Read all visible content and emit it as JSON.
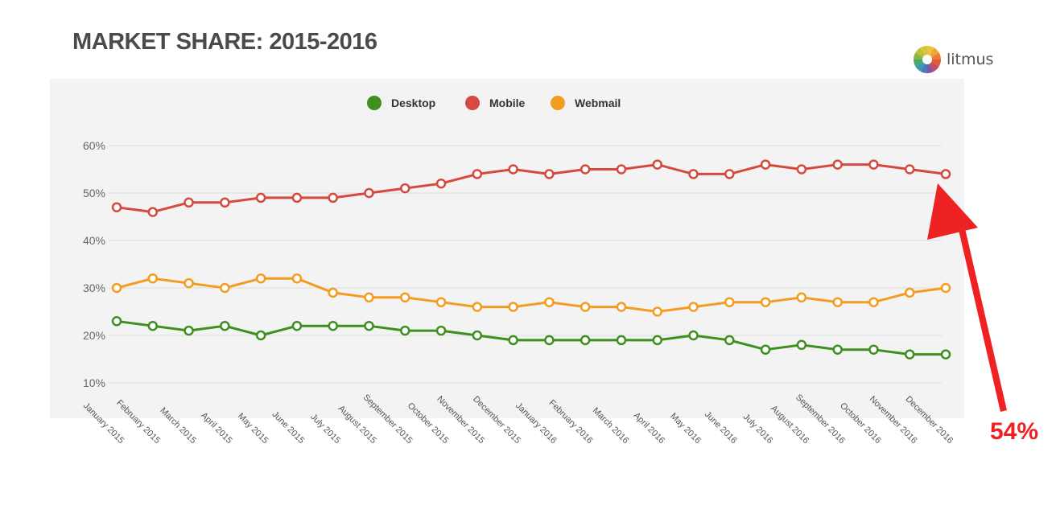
{
  "colors": {
    "desktop": "#3d8f1e",
    "mobile": "#d5493f",
    "webmail": "#f39c1f",
    "plot_bg": "#f3f3f3",
    "arrow": "#ee2222"
  },
  "brand": {
    "name": "litmus",
    "icon": "litmus-color-wheel-icon"
  },
  "annotation": {
    "label": "54%",
    "icon": "red-arrow-icon"
  },
  "chart_data": {
    "type": "line",
    "title": "MARKET SHARE: 2015-2016",
    "legend_position": "top-center",
    "grid": true,
    "ylim": [
      10,
      60
    ],
    "yticks": [
      "60%",
      "50%",
      "40%",
      "30%",
      "20%",
      "10%"
    ],
    "categories": [
      "January 2015",
      "February 2015",
      "March 2015",
      "April 2015",
      "May 2015",
      "June 2015",
      "July 2015",
      "August 2015",
      "September 2015",
      "October 2015",
      "November 2015",
      "December 2015",
      "January 2016",
      "February 2016",
      "March 2016",
      "April 2016",
      "May 2016",
      "June 2016",
      "July 2016",
      "August 2016",
      "September 2016",
      "October 2016",
      "November 2016",
      "December 2016"
    ],
    "series": [
      {
        "name": "Desktop",
        "values": [
          23,
          22,
          21,
          22,
          20,
          22,
          22,
          22,
          21,
          21,
          20,
          19,
          19,
          19,
          19,
          19,
          20,
          19,
          17,
          18,
          17,
          17,
          16,
          16
        ]
      },
      {
        "name": "Mobile",
        "values": [
          47,
          46,
          48,
          48,
          49,
          49,
          49,
          50,
          51,
          52,
          54,
          55,
          54,
          55,
          55,
          56,
          54,
          54,
          56,
          55,
          56,
          56,
          55,
          54
        ]
      },
      {
        "name": "Webmail",
        "values": [
          30,
          32,
          31,
          30,
          32,
          32,
          29,
          28,
          28,
          27,
          26,
          26,
          27,
          26,
          26,
          25,
          26,
          27,
          27,
          28,
          27,
          27,
          29,
          30
        ]
      }
    ]
  }
}
